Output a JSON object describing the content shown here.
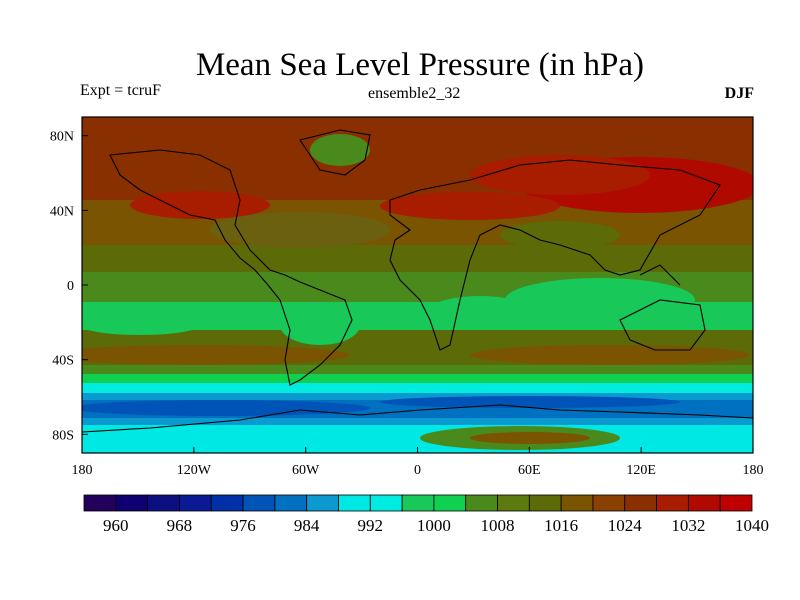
{
  "title": "Mean Sea Level Pressure (in hPa)",
  "left_label": "Expt = tcruF",
  "center_label": "ensemble2_32",
  "right_label": "DJF",
  "map": {
    "projection": "cylindrical-equidistant",
    "lon_range": [
      -180,
      180
    ],
    "lat_range": [
      -90,
      90
    ],
    "fill": "filled contours of sea level pressure",
    "coastlines": "black"
  },
  "x_ticks": [
    {
      "value": -180,
      "label": "180"
    },
    {
      "value": -120,
      "label": "120W"
    },
    {
      "value": -60,
      "label": "60W"
    },
    {
      "value": 0,
      "label": "0"
    },
    {
      "value": 60,
      "label": "60E"
    },
    {
      "value": 120,
      "label": "120E"
    },
    {
      "value": 180,
      "label": "180"
    }
  ],
  "y_ticks": [
    {
      "value": 80,
      "label": "80N"
    },
    {
      "value": 40,
      "label": "40N"
    },
    {
      "value": 0,
      "label": "0"
    },
    {
      "value": -40,
      "label": "40S"
    },
    {
      "value": -80,
      "label": "80S"
    }
  ],
  "colorbar": {
    "colors": [
      "#23005c",
      "#0e0070",
      "#0b0f80",
      "#0a1a94",
      "#0030a8",
      "#0054b8",
      "#0070c0",
      "#0a9ad0",
      "#00e8e4",
      "#00ece0",
      "#18c858",
      "#10d050",
      "#4a8a1c",
      "#5c7a10",
      "#5c6a08",
      "#7a5400",
      "#8a4000",
      "#8a3000",
      "#a81c00",
      "#b00a00",
      "#c00000"
    ],
    "tick_labels": [
      "960",
      "968",
      "976",
      "984",
      "992",
      "1000",
      "1008",
      "1016",
      "1024",
      "1032",
      "1040"
    ]
  }
}
